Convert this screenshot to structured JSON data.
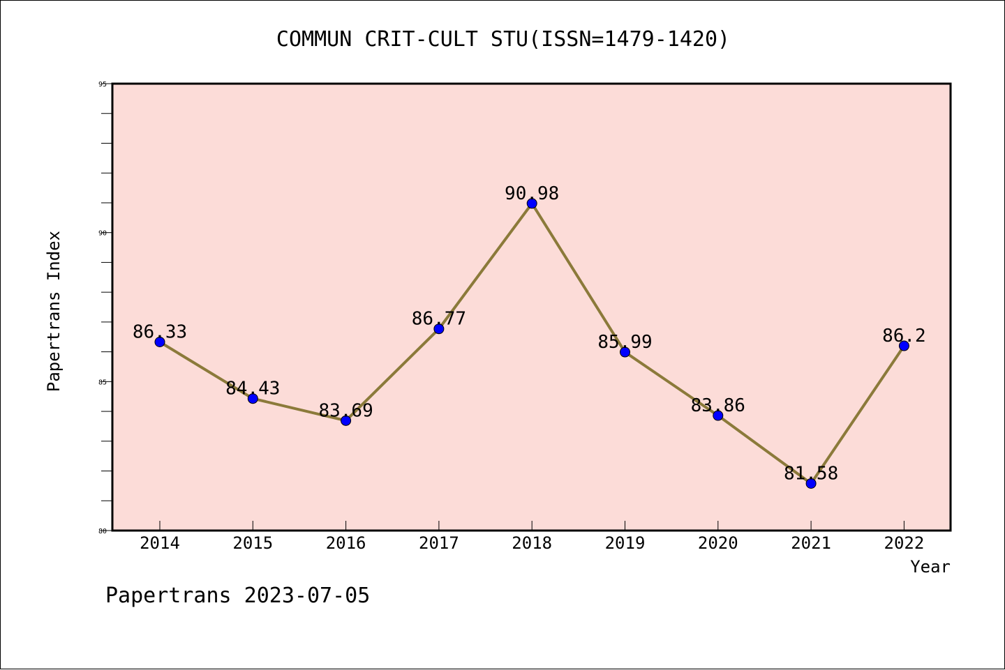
{
  "footer_text": "Papertrans 2023-07-05",
  "chart_data": {
    "type": "line",
    "title": "COMMUN CRIT-CULT STU(ISSN=1479-1420)",
    "xlabel": "Year",
    "ylabel": "Papertrans Index",
    "categories": [
      "2014",
      "2015",
      "2016",
      "2017",
      "2018",
      "2019",
      "2020",
      "2021",
      "2022"
    ],
    "series": [
      {
        "values": [
          86.33,
          84.43,
          83.69,
          86.77,
          90.98,
          85.99,
          83.86,
          81.58,
          86.2
        ],
        "labels": [
          "86.33",
          "84.43",
          "83.69",
          "86.77",
          "90.98",
          "85.99",
          "83.86",
          "81.58",
          "86.2"
        ],
        "line_color": "#8b7a3a",
        "marker_color": "#0000ff"
      }
    ],
    "ylim": [
      80,
      95
    ],
    "yticks": [
      "80",
      "85",
      "90",
      "95"
    ],
    "plot_background": "#fcdcd8",
    "grid": false
  }
}
